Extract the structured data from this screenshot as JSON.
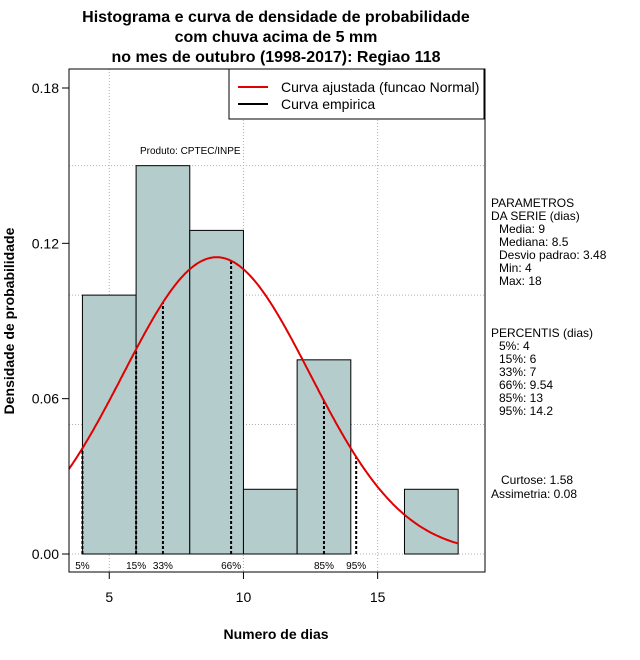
{
  "chart_data": {
    "type": "bar",
    "title": [
      "Histograma e curva de densidade de probabilidade",
      "com chuva acima de 5 mm",
      "no mes de outubro (1998-2017): Regiao 118"
    ],
    "xlabel": "Numero de dias",
    "ylabel": "Densidade de probabilidade",
    "xlim": [
      3.5,
      19
    ],
    "ylim": [
      0,
      0.18
    ],
    "x_ticks": [
      5,
      10,
      15
    ],
    "x_tick_labels": [
      "5",
      "10",
      "15"
    ],
    "y_ticks": [
      0,
      0.06,
      0.12,
      0.18
    ],
    "y_tick_labels": [
      "0.00",
      "0.06",
      "0.12",
      "0.18"
    ],
    "grid": true,
    "bins": [
      {
        "start": 4,
        "end": 6,
        "density": 0.1
      },
      {
        "start": 6,
        "end": 8,
        "density": 0.15
      },
      {
        "start": 8,
        "end": 10,
        "density": 0.125
      },
      {
        "start": 10,
        "end": 12,
        "density": 0.025
      },
      {
        "start": 12,
        "end": 14,
        "density": 0.075
      },
      {
        "start": 14,
        "end": 16,
        "density": 0
      },
      {
        "start": 16,
        "end": 18,
        "density": 0.025
      }
    ],
    "bar_color": "#b4cccc",
    "normal_fit": {
      "mean": 9,
      "sd": 3.48,
      "color": "#e00000"
    },
    "percentiles": [
      {
        "label": "5%",
        "value": 4
      },
      {
        "label": "15%",
        "value": 6
      },
      {
        "label": "33%",
        "value": 7
      },
      {
        "label": "66%",
        "value": 9.54
      },
      {
        "label": "85%",
        "value": 13
      },
      {
        "label": "95%",
        "value": 14.2
      }
    ],
    "legend": {
      "position": "top-right",
      "entries": [
        {
          "label": "Curva ajustada (funcao Normal)",
          "color": "#e00000"
        },
        {
          "label": "Curva empirica",
          "color": "#000000"
        }
      ]
    },
    "annotation": "Produto: CPTEC/INPE",
    "side_panel": {
      "parametros": [
        "PARAMETROS",
        "DA SERIE (dias)",
        "Media: 9",
        "Mediana: 8.5",
        "Desvio padrao: 3.48",
        "Min: 4",
        "Max: 18"
      ],
      "percentis": [
        "PERCENTIS (dias)",
        "5%: 4",
        "15%: 6",
        "33%: 7",
        "66%: 9.54",
        "85%: 13",
        "95%: 14.2"
      ],
      "stats": [
        "Curtose: 1.58",
        "Assimetria: 0.08"
      ]
    }
  }
}
